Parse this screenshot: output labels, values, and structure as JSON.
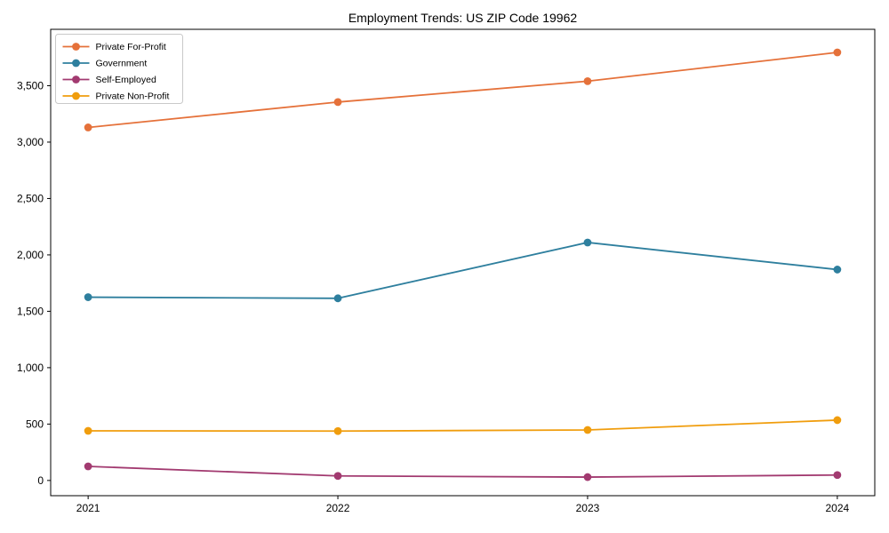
{
  "title": "Employment Trends: US ZIP Code 19962",
  "chart_data": {
    "type": "line",
    "title": "Employment Trends: US ZIP Code 19962",
    "xlabel": "",
    "ylabel": "",
    "grid": false,
    "legend_position": "upper-left",
    "x": [
      2021,
      2022,
      2023,
      2024
    ],
    "xticklabels": [
      "2021",
      "2022",
      "2023",
      "2024"
    ],
    "xlim": [
      2020.85,
      2024.15
    ],
    "ylim": [
      -135,
      4000
    ],
    "yticks": [
      {
        "value": 0,
        "label": "0"
      },
      {
        "value": 500,
        "label": "500"
      },
      {
        "value": 1000,
        "label": "1,000"
      },
      {
        "value": 1500,
        "label": "1,500"
      },
      {
        "value": 2000,
        "label": "2,000"
      },
      {
        "value": 2500,
        "label": "2,500"
      },
      {
        "value": 3000,
        "label": "3,000"
      },
      {
        "value": 3500,
        "label": "3,500"
      }
    ],
    "series": [
      {
        "id": "private-for-profit",
        "name": "Private For-Profit",
        "color": "#e5713a",
        "marker": "circle",
        "values": [
          3130,
          3355,
          3540,
          3795
        ]
      },
      {
        "id": "government",
        "name": "Government",
        "color": "#2e7f9e",
        "marker": "circle",
        "values": [
          1625,
          1615,
          2110,
          1870
        ]
      },
      {
        "id": "self-employed",
        "name": "Self-Employed",
        "color": "#a23a70",
        "marker": "circle",
        "values": [
          125,
          40,
          30,
          48
        ]
      },
      {
        "id": "private-non-profit",
        "name": "Private Non-Profit",
        "color": "#f09d0d",
        "marker": "circle",
        "values": [
          440,
          438,
          448,
          535
        ]
      }
    ],
    "axis_color": "#000000",
    "background_color": "#ffffff",
    "legend_border_color": "#c9c9c9"
  }
}
